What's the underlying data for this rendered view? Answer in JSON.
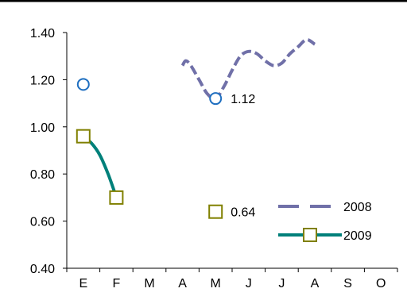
{
  "chart_data": {
    "type": "line",
    "categories": [
      "E",
      "F",
      "M",
      "A",
      "M",
      "J",
      "J",
      "A",
      "S",
      "O"
    ],
    "ylim": [
      0.4,
      1.4
    ],
    "yticks": [
      "0.40",
      "0.60",
      "0.80",
      "1.00",
      "1.20",
      "1.40"
    ],
    "ytick_values": [
      0.4,
      0.6,
      0.8,
      1.0,
      1.2,
      1.4
    ],
    "grid": false,
    "legend_position": "bottom-right",
    "series": [
      {
        "name": "2008",
        "color": "#7070A8",
        "style": "dashed",
        "marker": "circle",
        "marker_color": "#1F6FC0",
        "line_points": [
          {
            "x": 3.0,
            "y": 1.26
          },
          {
            "x": 3.1,
            "y": 1.28
          },
          {
            "x": 3.25,
            "y": 1.26
          },
          {
            "x": 3.5,
            "y": 1.2
          },
          {
            "x": 3.75,
            "y": 1.14
          },
          {
            "x": 4.0,
            "y": 1.12
          },
          {
            "x": 4.25,
            "y": 1.17
          },
          {
            "x": 4.5,
            "y": 1.24
          },
          {
            "x": 4.75,
            "y": 1.3
          },
          {
            "x": 5.0,
            "y": 1.32
          },
          {
            "x": 5.25,
            "y": 1.31
          },
          {
            "x": 5.5,
            "y": 1.28
          },
          {
            "x": 5.75,
            "y": 1.26
          },
          {
            "x": 6.0,
            "y": 1.27
          },
          {
            "x": 6.25,
            "y": 1.31
          },
          {
            "x": 6.5,
            "y": 1.34
          },
          {
            "x": 6.75,
            "y": 1.37
          },
          {
            "x": 7.0,
            "y": 1.35
          }
        ],
        "markers": [
          {
            "x": 0,
            "y": 1.18
          },
          {
            "x": 4,
            "y": 1.12,
            "label": "1.12"
          }
        ]
      },
      {
        "name": "2009",
        "color": "#00807A",
        "style": "solid",
        "marker": "square",
        "marker_color": "#808000",
        "line_points": [
          {
            "x": 0,
            "y": 0.96
          },
          {
            "x": 0.25,
            "y": 0.93
          },
          {
            "x": 0.5,
            "y": 0.88
          },
          {
            "x": 0.75,
            "y": 0.8
          },
          {
            "x": 1.0,
            "y": 0.7
          }
        ],
        "markers": [
          {
            "x": 0,
            "y": 0.96
          },
          {
            "x": 1,
            "y": 0.7
          },
          {
            "x": 4,
            "y": 0.64,
            "label": "0.64"
          }
        ]
      }
    ]
  }
}
